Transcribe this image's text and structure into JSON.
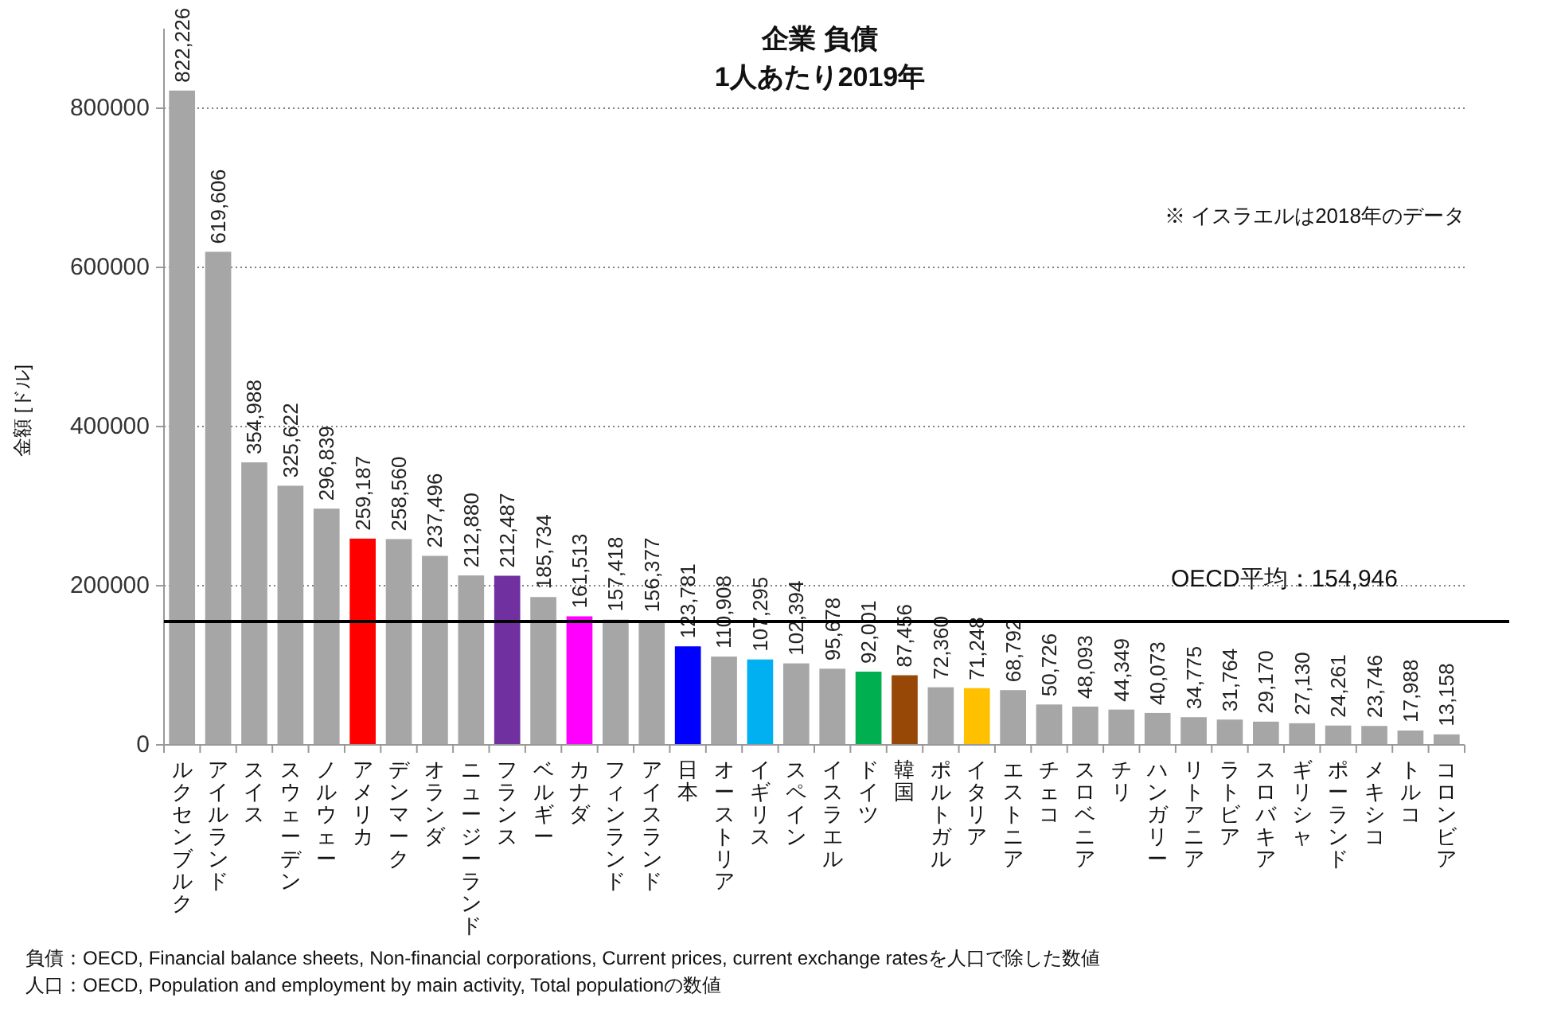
{
  "chart_data": {
    "type": "bar",
    "title": "企業 負債",
    "subtitle": "1人あたり2019年",
    "ylabel": "金額 [ドル]",
    "categories": [
      "ルクセンブルク",
      "アイルランド",
      "スイス",
      "スウェーデン",
      "ノルウェー",
      "アメリカ",
      "デンマーク",
      "オランダ",
      "ニュージーランド",
      "フランス",
      "ベルギー",
      "カナダ",
      "フィンランド",
      "アイスランド",
      "日本",
      "オーストリア",
      "イギリス",
      "スペイン",
      "イスラエル",
      "ドイツ",
      "韓国",
      "ポルトガル",
      "イタリア",
      "エストニア",
      "チェコ",
      "スロベニア",
      "チリ",
      "ハンガリー",
      "リトアニア",
      "ラトビア",
      "スロバキア",
      "ギリシャ",
      "ポーランド",
      "メキシコ",
      "トルコ",
      "コロンビア"
    ],
    "values": [
      822226,
      619606,
      354988,
      325622,
      296839,
      259187,
      258560,
      237496,
      212880,
      212487,
      185734,
      161513,
      157418,
      156377,
      123781,
      110908,
      107295,
      102394,
      95678,
      92001,
      87456,
      72360,
      71248,
      68792,
      50726,
      48093,
      44349,
      40073,
      34775,
      31764,
      29170,
      27130,
      24261,
      23746,
      17988,
      13158
    ],
    "value_labels": [
      "822,226",
      "619,606",
      "354,988",
      "325,622",
      "296,839",
      "259,187",
      "258,560",
      "237,496",
      "212,880",
      "212,487",
      "185,734",
      "161,513",
      "157,418",
      "156,377",
      "123,781",
      "110,908",
      "107,295",
      "102,394",
      "95,678",
      "92,001",
      "87,456",
      "72,360",
      "71,248",
      "68,792",
      "50,726",
      "48,093",
      "44,349",
      "40,073",
      "34,775",
      "31,764",
      "29,170",
      "27,130",
      "24,261",
      "23,746",
      "17,988",
      "13,158"
    ],
    "colors": [
      "#a6a6a6",
      "#a6a6a6",
      "#a6a6a6",
      "#a6a6a6",
      "#a6a6a6",
      "#ff0000",
      "#a6a6a6",
      "#a6a6a6",
      "#a6a6a6",
      "#7030a0",
      "#a6a6a6",
      "#ff00ff",
      "#a6a6a6",
      "#a6a6a6",
      "#0000ff",
      "#a6a6a6",
      "#00b0f0",
      "#a6a6a6",
      "#a6a6a6",
      "#00b050",
      "#974706",
      "#a6a6a6",
      "#ffc000",
      "#a6a6a6",
      "#a6a6a6",
      "#a6a6a6",
      "#a6a6a6",
      "#a6a6a6",
      "#a6a6a6",
      "#a6a6a6",
      "#a6a6a6",
      "#a6a6a6",
      "#a6a6a6",
      "#a6a6a6",
      "#a6a6a6",
      "#a6a6a6"
    ],
    "ylim": [
      0,
      900000
    ],
    "yticks": [
      0,
      200000,
      400000,
      600000,
      800000
    ],
    "grid": "y",
    "ref_lines": [
      {
        "axis": "y",
        "value": 154946,
        "label": "OECD平均：154,946",
        "color": "#000000"
      }
    ],
    "annotations": [
      "※ イスラエルは2018年のデータ",
      "負債：OECD, Financial balance sheets, Non-financial corporations, Current prices, current exchange ratesを人口で除した数値",
      "人口：OECD, Population and employment by main activity, Total populationの数値"
    ]
  }
}
